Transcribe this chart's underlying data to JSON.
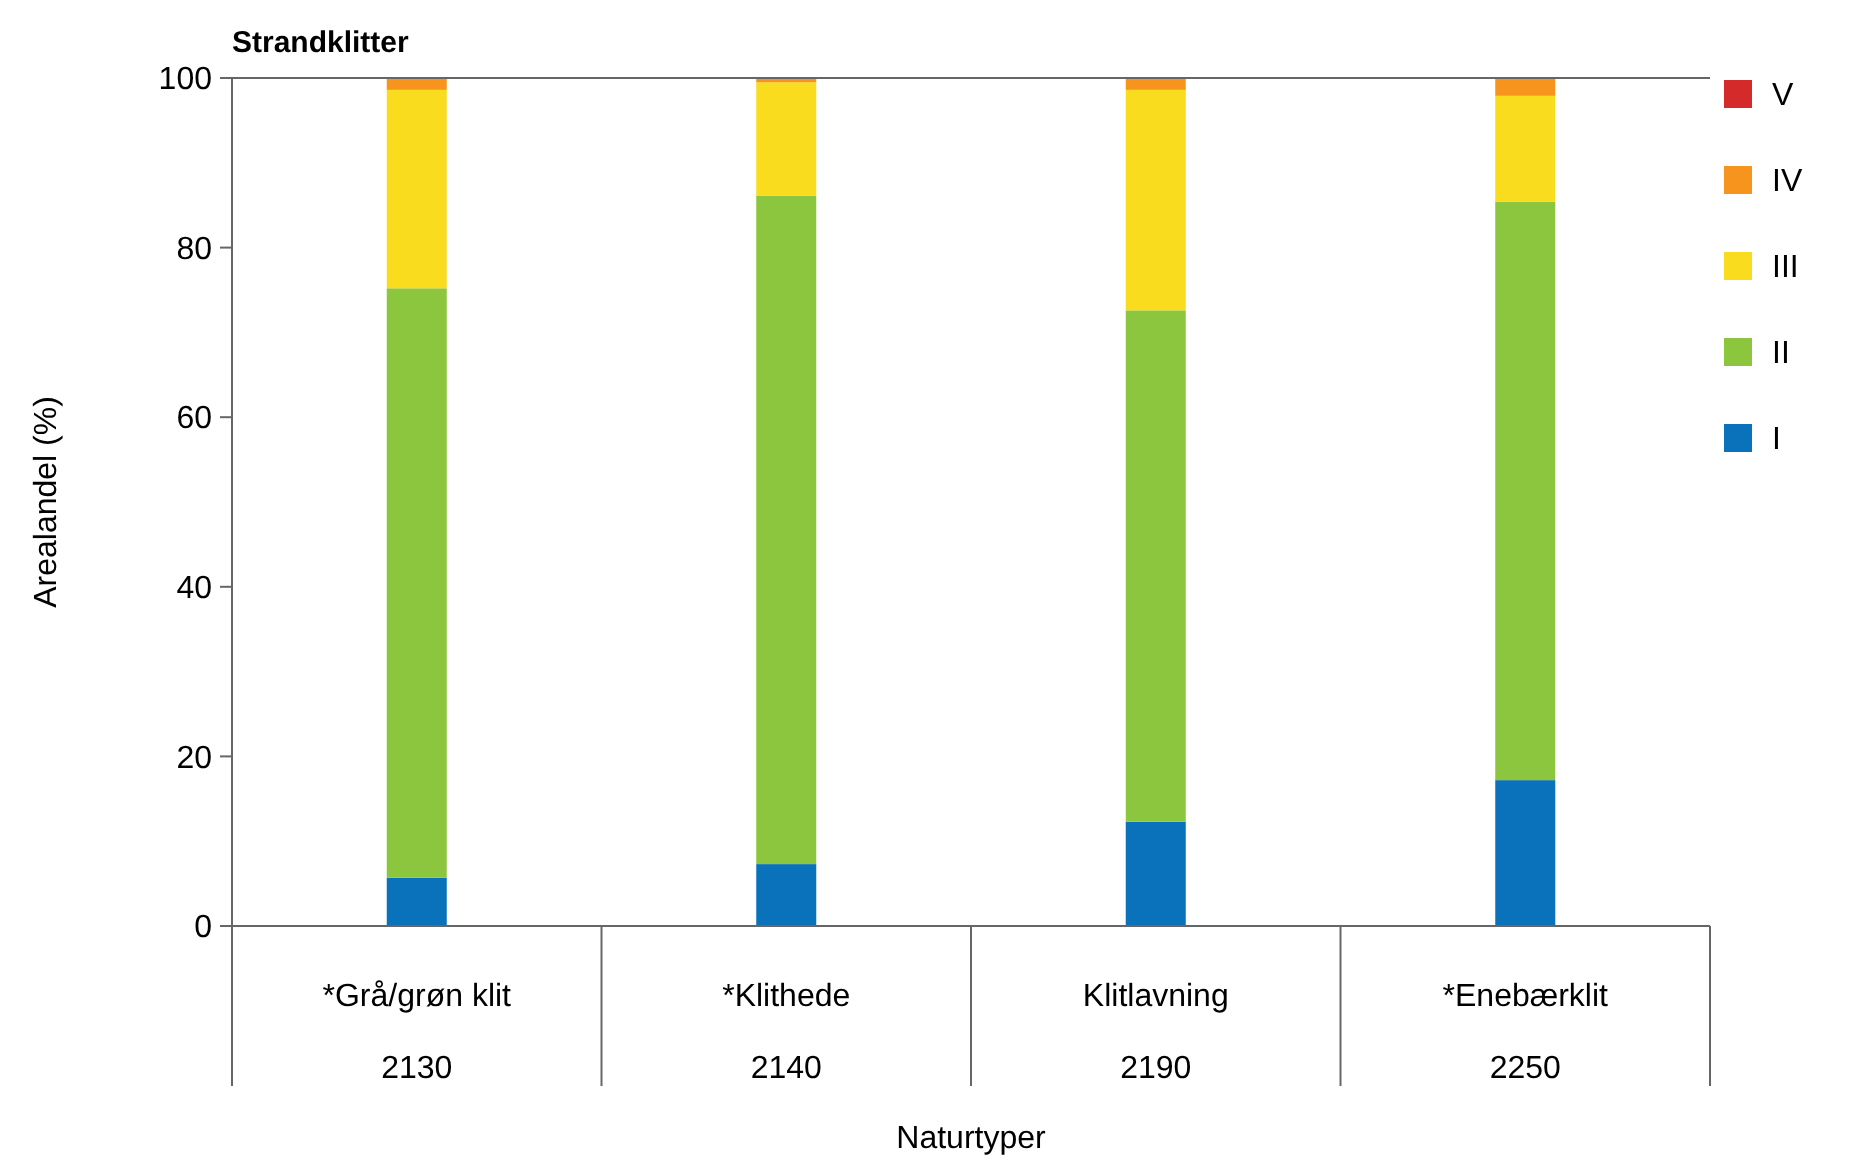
{
  "chart_data": {
    "type": "bar",
    "title": "Strandklitter",
    "xlabel": "Naturtyper",
    "ylabel": "Arealandel (%)",
    "categories": [
      "*Grå/grøn klit\n2130",
      "*Klithede\n2140",
      "Klitlavning\n2190",
      "*Enebærklit\n2250"
    ],
    "stacked": true,
    "ylim": [
      0,
      100
    ],
    "yticks": [
      0,
      20,
      40,
      60,
      80,
      100
    ],
    "grid": false,
    "legend": "right",
    "series": [
      {
        "name": "I",
        "color": "#0a72ba",
        "values": [
          5.7,
          7.3,
          12.3,
          17.2
        ]
      },
      {
        "name": "II",
        "color": "#8cc63f",
        "values": [
          69.5,
          78.8,
          60.3,
          68.2
        ]
      },
      {
        "name": "III",
        "color": "#f9dc1e",
        "values": [
          23.4,
          13.4,
          26.0,
          12.5
        ]
      },
      {
        "name": "IV",
        "color": "#f7941d",
        "values": [
          1.4,
          0.5,
          1.4,
          2.1
        ]
      },
      {
        "name": "V",
        "color": "#d42a2a",
        "values": [
          0,
          0,
          0,
          0
        ]
      }
    ]
  }
}
